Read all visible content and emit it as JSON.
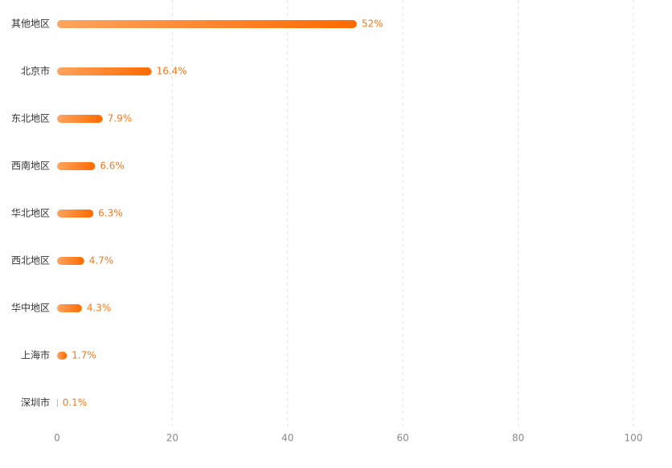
{
  "chart_data": {
    "type": "bar",
    "orientation": "horizontal",
    "categories": [
      "其他地区",
      "北京市",
      "东北地区",
      "西南地区",
      "华北地区",
      "西北地区",
      "华中地区",
      "上海市",
      "深圳市"
    ],
    "values": [
      52,
      16.4,
      7.9,
      6.6,
      6.3,
      4.7,
      4.3,
      1.7,
      0.1
    ],
    "value_labels": [
      "52%",
      "16.4%",
      "7.9%",
      "6.6%",
      "6.3%",
      "4.7%",
      "4.3%",
      "1.7%",
      "0.1%"
    ],
    "gradient": [
      "#ffa45e",
      "#ff6a00"
    ],
    "xlim": [
      0,
      100
    ],
    "xticks": [
      0,
      20,
      40,
      60,
      80,
      100
    ],
    "grid": true
  }
}
